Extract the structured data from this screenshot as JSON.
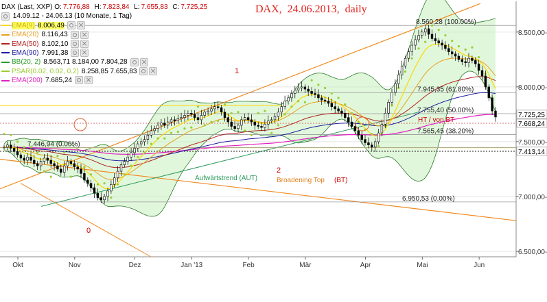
{
  "title": "DAX,  24.06.2013,  daily",
  "header": {
    "symbol": "DAX (Last, XXP)",
    "ohlc": [
      {
        "label": "O:",
        "value": "7.776,88"
      },
      {
        "label": "H:",
        "value": "7.823,84"
      },
      {
        "label": "L:",
        "value": "7.655,83"
      },
      {
        "label": "C:",
        "value": "7.725,25"
      }
    ],
    "range": "14.09.12 - 24.06.13 (10 Monate, 1 Tag)"
  },
  "indicators": [
    {
      "name": "EMA(9)",
      "value": "8.006,49",
      "color": "#ffd700",
      "highlight": true
    },
    {
      "name": "EMA(20)",
      "value": "8.116,43",
      "color": "#e8a020"
    },
    {
      "name": "EMA(50)",
      "value": "8.102,10",
      "color": "#b22020"
    },
    {
      "name": "EMA(90)",
      "value": "7.991,38",
      "color": "#1a1aa0"
    },
    {
      "name": "BB(20, 2)",
      "value": "8.563,71  8.184,00  7.804,28",
      "color": "#2a9a2a"
    },
    {
      "name": "PSAR(0.02, 0.02, 0.2)",
      "value": "8.258,85  7.655,83",
      "color": "#9acd32"
    },
    {
      "name": "EMA(200)",
      "value": "7.685,24",
      "color": "#e020c0"
    }
  ],
  "chart_data": {
    "type": "candlestick",
    "instrument": "DAX",
    "xlabel": "",
    "ylabel": "",
    "ylim": [
      6450,
      8780
    ],
    "x_ticks": [
      "Okt",
      "Nov",
      "Dez",
      "Jan '13",
      "Feb",
      "Mär",
      "Apr",
      "Mai",
      "Jun"
    ],
    "y_ticks": [
      "6.500,00",
      "7.000,00",
      "7.500,00",
      "8.000,00",
      "8.500,00"
    ],
    "y_tick_values": [
      6500,
      7000,
      7500,
      8000,
      8500
    ],
    "price_marks": [
      {
        "label": "7.725,25",
        "value": 7725.25
      },
      {
        "label": "7.668,24",
        "value": 7668.24
      },
      {
        "label": "7.413,14",
        "value": 7413.14
      }
    ],
    "fib_levels": [
      {
        "label": "8.560,28 (100.00%)",
        "value": 8560.28
      },
      {
        "label": "7.945,35 (61.80%)",
        "value": 7945.35
      },
      {
        "label": "7.755,40 (50.00%)",
        "value": 7755.4
      },
      {
        "label": "7.565,45 (38.20%)",
        "value": 7565.45
      },
      {
        "label": "6.950,53 (0.00%)",
        "value": 6950.53
      },
      {
        "label": "7.446,94 (0.00%)",
        "value": 7446.94
      }
    ],
    "annotations": [
      "0",
      "1",
      "2",
      "Aufwärtstrend (AUT)",
      "Broadening Top",
      "(BT)",
      "HT / von BT"
    ],
    "close": [
      7450,
      7470,
      7440,
      7410,
      7380,
      7350,
      7330,
      7360,
      7330,
      7300,
      7280,
      7320,
      7350,
      7330,
      7300,
      7280,
      7250,
      7220,
      7280,
      7320,
      7300,
      7270,
      7250,
      7210,
      7150,
      7120,
      7080,
      7030,
      6990,
      6970,
      7000,
      7050,
      7110,
      7170,
      7230,
      7290,
      7320,
      7360,
      7400,
      7440,
      7480,
      7500,
      7520,
      7560,
      7600,
      7620,
      7650,
      7670,
      7650,
      7680,
      7700,
      7690,
      7710,
      7720,
      7740,
      7760,
      7750,
      7720,
      7700,
      7740,
      7770,
      7780,
      7800,
      7820,
      7810,
      7770,
      7720,
      7680,
      7640,
      7620,
      7650,
      7700,
      7720,
      7700,
      7680,
      7650,
      7640,
      7630,
      7660,
      7690,
      7700,
      7730,
      7770,
      7820,
      7870,
      7900,
      7940,
      7970,
      7990,
      8000,
      7980,
      7960,
      7940,
      7930,
      7900,
      7880,
      7870,
      7850,
      7820,
      7800,
      7780,
      7760,
      7720,
      7680,
      7640,
      7600,
      7560,
      7520,
      7490,
      7470,
      7450,
      7500,
      7580,
      7660,
      7760,
      7860,
      7950,
      8030,
      8110,
      8190,
      8260,
      8320,
      8380,
      8430,
      8470,
      8500,
      8530,
      8480,
      8440,
      8420,
      8400,
      8380,
      8350,
      8320,
      8300,
      8280,
      8250,
      8230,
      8220,
      8260,
      8240,
      8210,
      8150,
      8100,
      8000,
      7900,
      7780,
      7725
    ]
  }
}
